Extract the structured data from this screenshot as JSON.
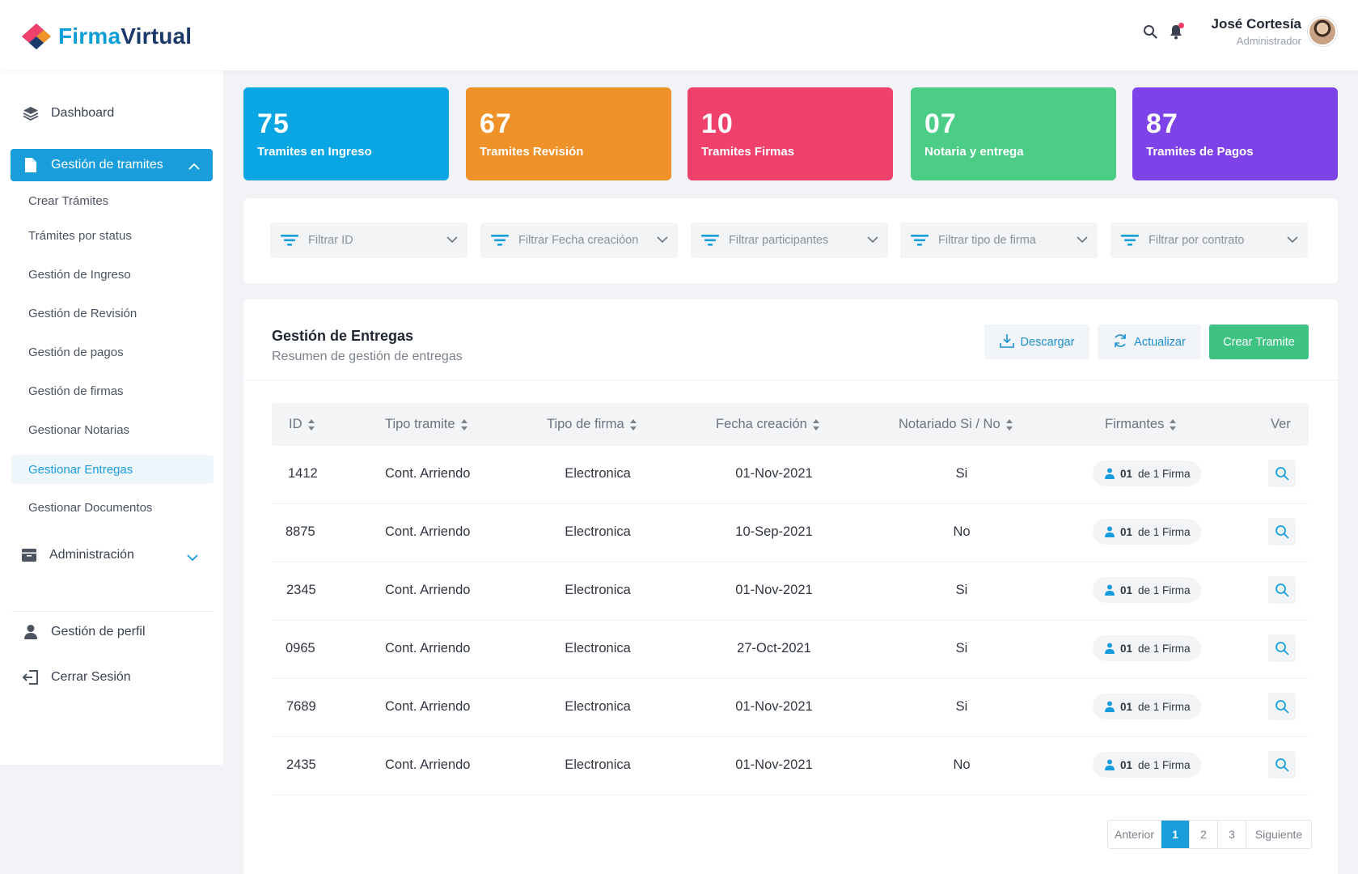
{
  "brand": {
    "part1": "Firma",
    "part2": "Virtual"
  },
  "user": {
    "name": "José Cortesía",
    "role": "Administrador"
  },
  "sidebar": {
    "dashboard": "Dashboard",
    "tramites": "Gestión de tramites",
    "subitems": [
      "Crear Trámites",
      "Trámites por status",
      "Gestión de Ingreso",
      "Gestión de Revisión",
      "Gestión de pagos",
      "Gestión de firmas",
      "Gestionar Notarias",
      "Gestionar Entregas",
      "Gestionar Documentos"
    ],
    "admin": "Administración",
    "perfil": "Gestión de perfil",
    "logout": "Cerrar Sesión"
  },
  "kpis": [
    {
      "num": "75",
      "label": "Tramites en Ingreso",
      "color": "#0aa6e4"
    },
    {
      "num": "67",
      "label": "Tramites Revisión",
      "color": "#f0922a"
    },
    {
      "num": "10",
      "label": "Tramites Firmas",
      "color": "#f0416c"
    },
    {
      "num": "07",
      "label": "Notaria y entrega",
      "color": "#4ccd86"
    },
    {
      "num": "87",
      "label": "Tramites de Pagos",
      "color": "#7d42e8"
    }
  ],
  "filters": [
    "Filtrar ID",
    "Filtrar Fecha creacióon",
    "Filtrar participantes",
    "Filtrar tipo de firma",
    "Filtrar por contrato"
  ],
  "panel": {
    "title": "Gestión de Entregas",
    "subtitle": "Resumen de gestión de entregas",
    "download": "Descargar",
    "refresh": "Actualizar",
    "create": "Crear Tramite"
  },
  "table": {
    "headers": [
      "ID",
      "Tipo tramite",
      "Tipo de firma",
      "Fecha creación",
      "Notariado Si / No",
      "Firmantes",
      "Ver"
    ],
    "rows": [
      {
        "id": "1412",
        "tipo": "Cont. Arriendo",
        "firma": "Electronica",
        "fecha": "01-Nov-2021",
        "notariado": "Si",
        "count": "01",
        "of": "de 1 Firma"
      },
      {
        "id": "8875",
        "tipo": "Cont. Arriendo",
        "firma": "Electronica",
        "fecha": "10-Sep-2021",
        "notariado": "No",
        "count": "01",
        "of": "de 1 Firma"
      },
      {
        "id": "2345",
        "tipo": "Cont. Arriendo",
        "firma": "Electronica",
        "fecha": "01-Nov-2021",
        "notariado": "Si",
        "count": "01",
        "of": "de 1 Firma"
      },
      {
        "id": "0965",
        "tipo": "Cont. Arriendo",
        "firma": "Electronica",
        "fecha": "27-Oct-2021",
        "notariado": "Si",
        "count": "01",
        "of": "de 1 Firma"
      },
      {
        "id": "7689",
        "tipo": "Cont. Arriendo",
        "firma": "Electronica",
        "fecha": "01-Nov-2021",
        "notariado": "Si",
        "count": "01",
        "of": "de 1 Firma"
      },
      {
        "id": "2435",
        "tipo": "Cont. Arriendo",
        "firma": "Electronica",
        "fecha": "01-Nov-2021",
        "notariado": "No",
        "count": "01",
        "of": "de 1 Firma"
      }
    ]
  },
  "pagination": {
    "prev": "Anterior",
    "pages": [
      "1",
      "2",
      "3"
    ],
    "next": "Siguiente",
    "current": "1"
  }
}
